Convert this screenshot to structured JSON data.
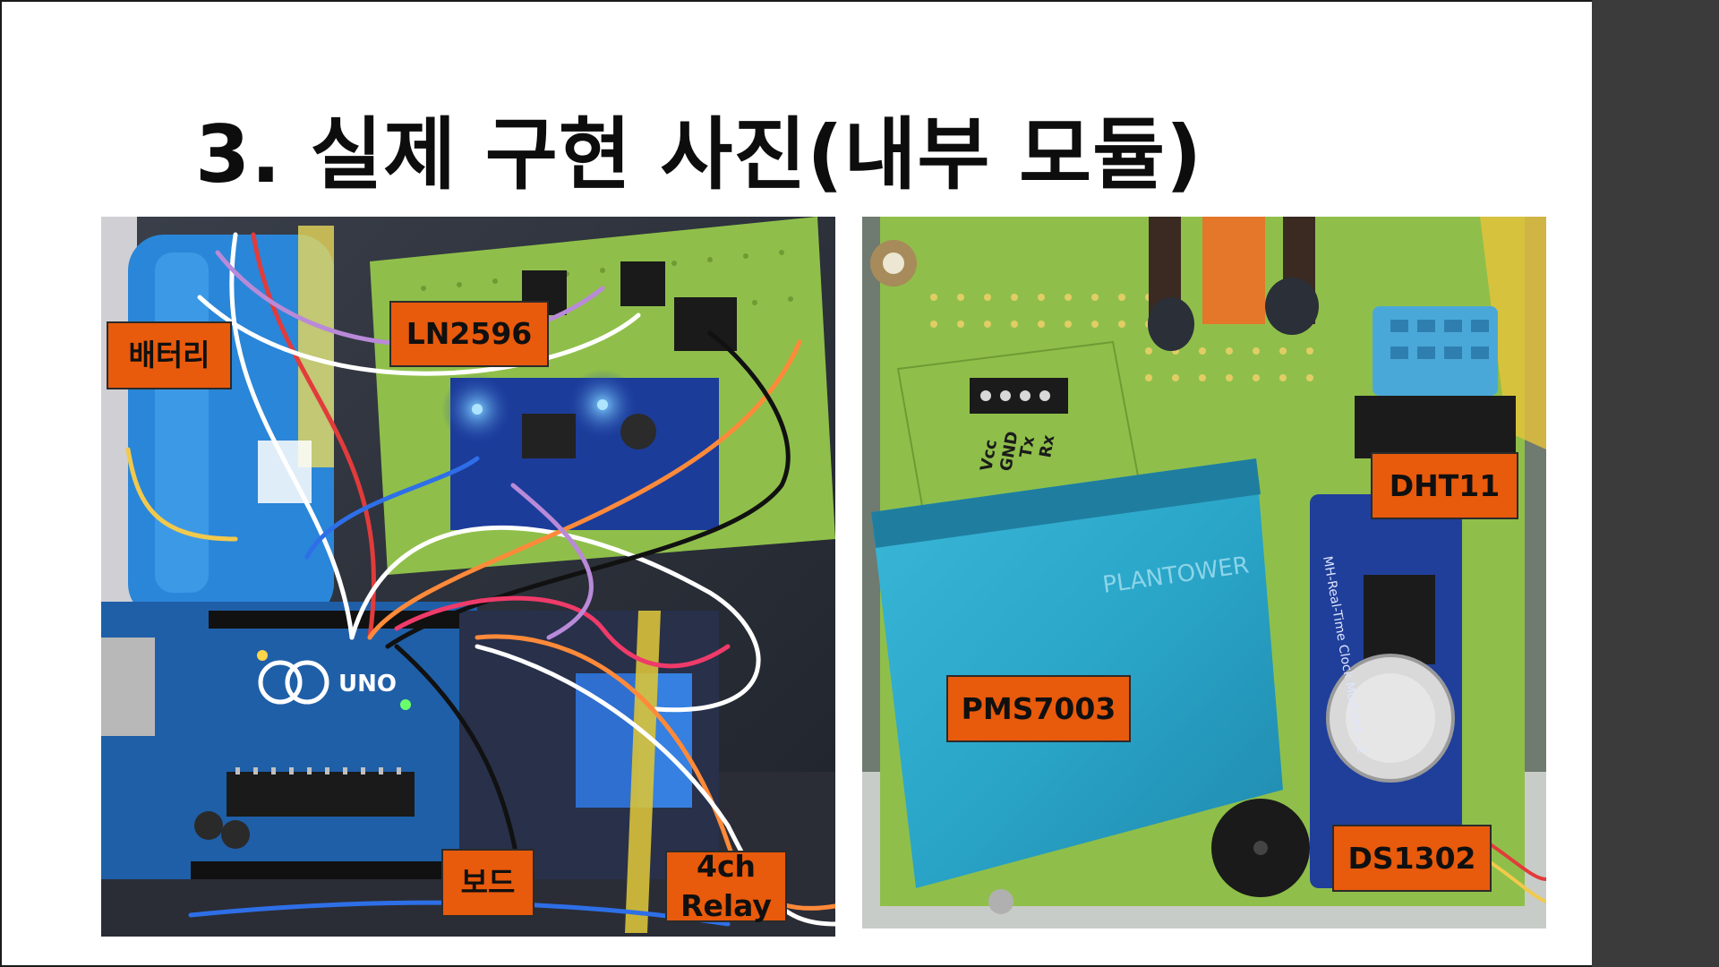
{
  "slide": {
    "title": "3. 실제 구현 사진(내부 모듈)"
  },
  "left_photo": {
    "labels": {
      "battery": "배터리",
      "regulator": "LN2596",
      "board": "보드",
      "relay": "4ch\nRelay"
    },
    "board_text": "UNO"
  },
  "right_photo": {
    "labels": {
      "pms": "PMS7003",
      "dht": "DHT11",
      "rtc": "DS1302"
    },
    "pin_labels": [
      "Vcc",
      "GND",
      "Tx",
      "Rx"
    ],
    "sensor_brand": "PLANTOWER",
    "rtc_text": "MH-Real-Time Clock Modules - 2"
  },
  "colors": {
    "callout": "#e85a0c",
    "sidebar": "#3b3b3b",
    "pcb_green": "#8fbf4a",
    "arduino_blue": "#1f5fa8",
    "sensor_blue": "#2aa6c9"
  }
}
